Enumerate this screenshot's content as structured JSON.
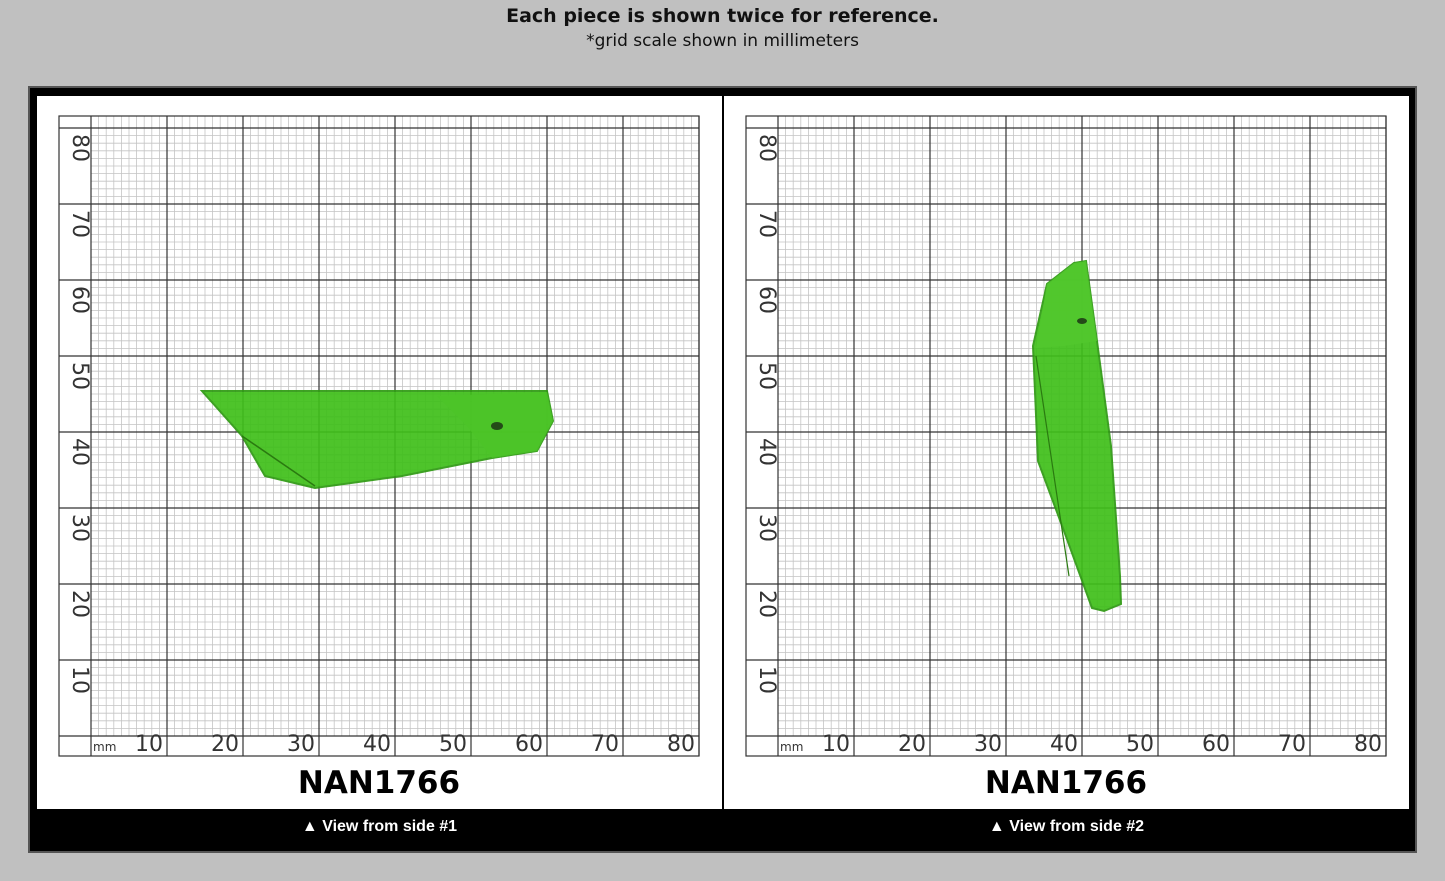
{
  "header": {
    "title": "Each piece is shown twice for reference.",
    "subtitle": "*grid scale shown in millimeters"
  },
  "grid": {
    "unit": "mm",
    "x_ticks": [
      "10",
      "20",
      "30",
      "40",
      "50",
      "60",
      "70",
      "80"
    ],
    "y_ticks": [
      "80",
      "70",
      "60",
      "50",
      "40",
      "30",
      "20",
      "10"
    ]
  },
  "panels": [
    {
      "label": "NAN1766",
      "caption": "▲ View from side #1"
    },
    {
      "label": "NAN1766",
      "caption": "▲ View from side #2"
    }
  ],
  "colors": {
    "background": "#c0c0c0",
    "frame": "#000000",
    "crystal": "#3fbf1a",
    "grid_major": "#333333",
    "grid_minor": "#bdbdbd"
  }
}
